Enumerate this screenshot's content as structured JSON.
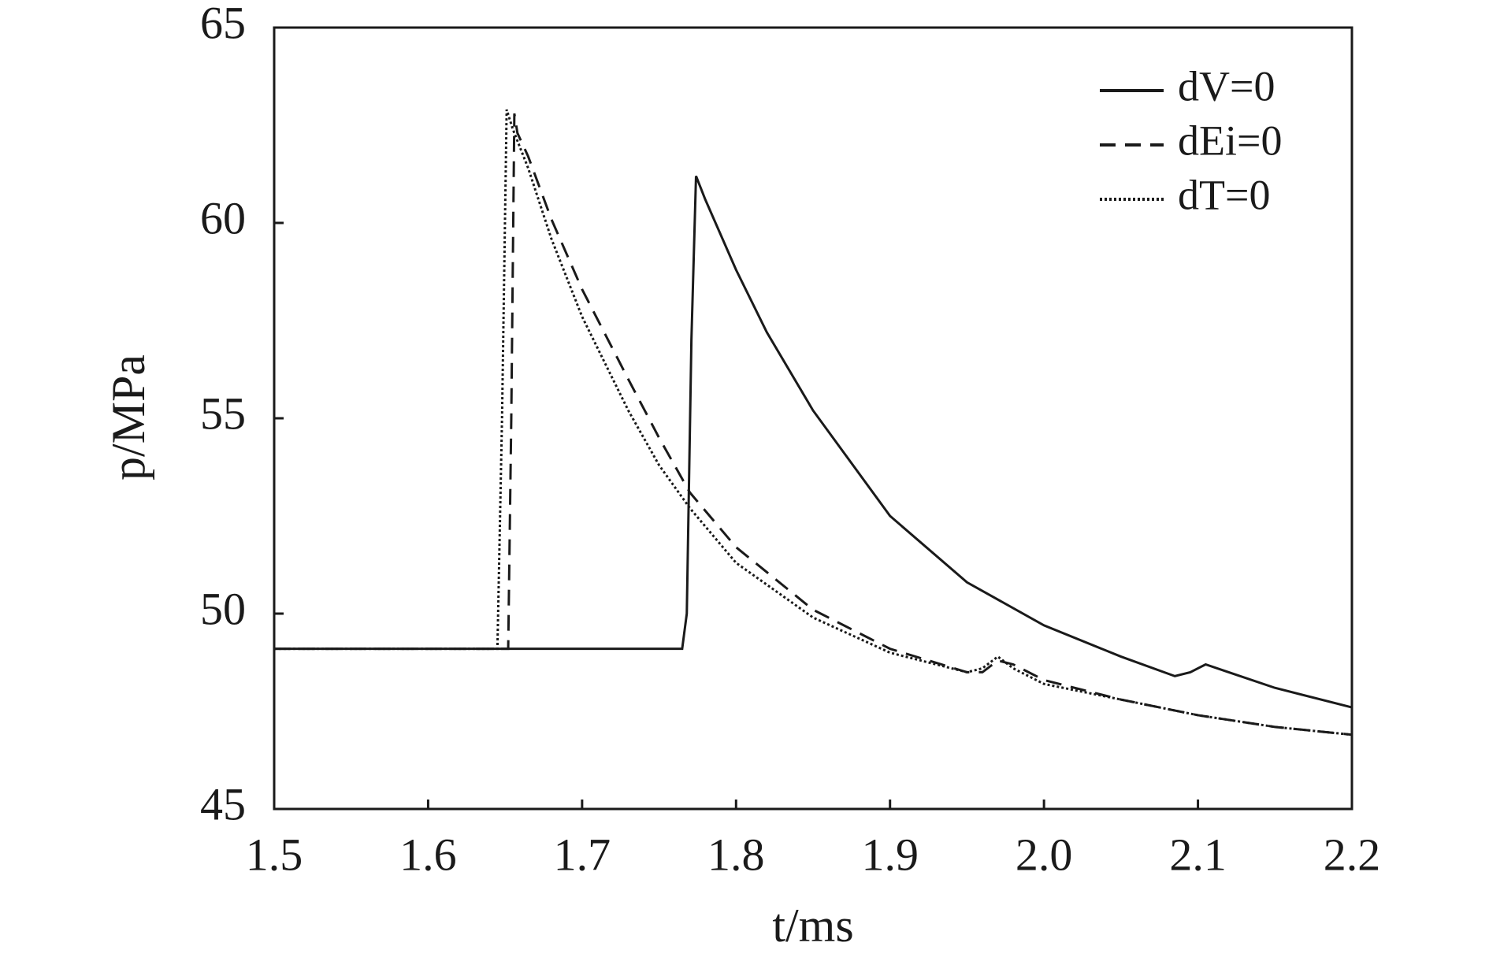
{
  "chart_data": {
    "type": "line",
    "x_label": "t/ms",
    "y_label": "p/MPa",
    "xlim": [
      1.5,
      2.2
    ],
    "ylim": [
      45,
      65
    ],
    "xticks": [
      1.5,
      1.6,
      1.7,
      1.8,
      1.9,
      {
        "value": 2,
        "label": "2.0"
      },
      2.1,
      2.2
    ],
    "yticks": [
      45,
      50,
      55,
      60,
      65
    ],
    "legend_position": "upper right",
    "series": [
      {
        "name": "dV=0",
        "color": "#1a1a1a",
        "style": "solid",
        "x": [
          1.5,
          1.6,
          1.7,
          1.765,
          1.768,
          1.771,
          1.774,
          1.78,
          1.8,
          1.82,
          1.85,
          1.9,
          1.95,
          2.0,
          2.05,
          2.085,
          2.095,
          2.105,
          2.12,
          2.15,
          2.2
        ],
        "values": [
          49.1,
          49.1,
          49.1,
          49.1,
          50,
          57,
          61.2,
          60.6,
          58.8,
          57.2,
          55.2,
          52.5,
          50.8,
          49.7,
          48.9,
          48.4,
          48.5,
          48.7,
          48.5,
          48.1,
          47.6
        ]
      },
      {
        "name": "dEi=0",
        "color": "#1a1a1a",
        "style": "dashed",
        "x": [
          1.5,
          1.6,
          1.652,
          1.654,
          1.656,
          1.658,
          1.665,
          1.68,
          1.7,
          1.73,
          1.75,
          1.77,
          1.8,
          1.85,
          1.9,
          1.95,
          1.96,
          1.97,
          1.98,
          2.0,
          2.05,
          2.1,
          2.15,
          2.2
        ],
        "values": [
          49.1,
          49.1,
          49.1,
          55,
          62.8,
          62.3,
          61.7,
          60.1,
          58.3,
          56.0,
          54.5,
          53.1,
          51.7,
          50.1,
          49.1,
          48.5,
          48.5,
          48.8,
          48.7,
          48.3,
          47.8,
          47.4,
          47.1,
          46.9
        ]
      },
      {
        "name": "dT=0",
        "color": "#1a1a1a",
        "style": "dotted",
        "x": [
          1.5,
          1.6,
          1.645,
          1.648,
          1.651,
          1.655,
          1.665,
          1.68,
          1.7,
          1.73,
          1.75,
          1.77,
          1.8,
          1.85,
          1.9,
          1.95,
          1.96,
          1.97,
          1.98,
          2.0,
          2.05,
          2.1,
          2.15,
          2.2
        ],
        "values": [
          49.1,
          49.1,
          49.1,
          55,
          62.9,
          62.4,
          61.4,
          59.6,
          57.6,
          55.2,
          53.8,
          52.7,
          51.3,
          49.9,
          49.0,
          48.5,
          48.6,
          48.9,
          48.6,
          48.2,
          47.8,
          47.4,
          47.1,
          46.9
        ]
      }
    ]
  }
}
